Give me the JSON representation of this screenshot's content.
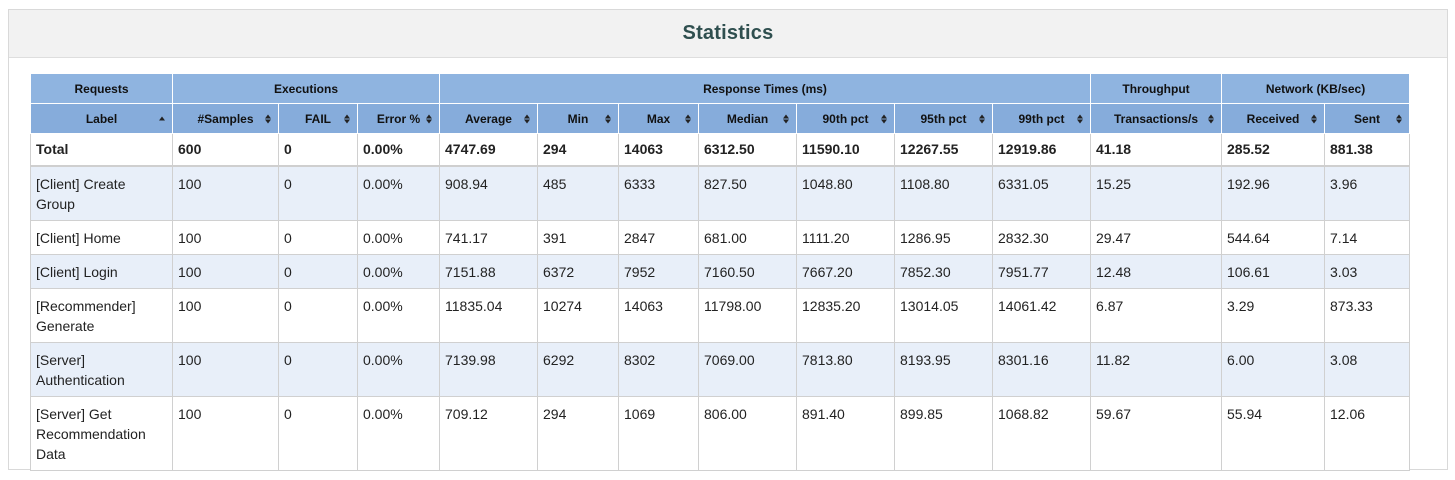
{
  "title": "Statistics",
  "groups": [
    {
      "label": "Requests",
      "span": 1
    },
    {
      "label": "Executions",
      "span": 3
    },
    {
      "label": "Response Times (ms)",
      "span": 7
    },
    {
      "label": "Throughput",
      "span": 1
    },
    {
      "label": "Network (KB/sec)",
      "span": 2
    }
  ],
  "columns": [
    {
      "label": "Label",
      "sort": "asc"
    },
    {
      "label": "#Samples",
      "sort": "both"
    },
    {
      "label": "FAIL",
      "sort": "both"
    },
    {
      "label": "Error %",
      "sort": "both"
    },
    {
      "label": "Average",
      "sort": "both"
    },
    {
      "label": "Min",
      "sort": "both"
    },
    {
      "label": "Max",
      "sort": "both"
    },
    {
      "label": "Median",
      "sort": "both"
    },
    {
      "label": "90th pct",
      "sort": "both"
    },
    {
      "label": "95th pct",
      "sort": "both"
    },
    {
      "label": "99th pct",
      "sort": "both"
    },
    {
      "label": "Transactions/s",
      "sort": "both"
    },
    {
      "label": "Received",
      "sort": "both"
    },
    {
      "label": "Sent",
      "sort": "both"
    }
  ],
  "total": [
    "Total",
    "600",
    "0",
    "0.00%",
    "4747.69",
    "294",
    "14063",
    "6312.50",
    "11590.10",
    "12267.55",
    "12919.86",
    "41.18",
    "285.52",
    "881.38"
  ],
  "rows": [
    [
      "[Client] Create Group",
      "100",
      "0",
      "0.00%",
      "908.94",
      "485",
      "6333",
      "827.50",
      "1048.80",
      "1108.80",
      "6331.05",
      "15.25",
      "192.96",
      "3.96"
    ],
    [
      "[Client] Home",
      "100",
      "0",
      "0.00%",
      "741.17",
      "391",
      "2847",
      "681.00",
      "1111.20",
      "1286.95",
      "2832.30",
      "29.47",
      "544.64",
      "7.14"
    ],
    [
      "[Client] Login",
      "100",
      "0",
      "0.00%",
      "7151.88",
      "6372",
      "7952",
      "7160.50",
      "7667.20",
      "7852.30",
      "7951.77",
      "12.48",
      "106.61",
      "3.03"
    ],
    [
      "[Recommender] Generate",
      "100",
      "0",
      "0.00%",
      "11835.04",
      "10274",
      "14063",
      "11798.00",
      "12835.20",
      "13014.05",
      "14061.42",
      "6.87",
      "3.29",
      "873.33"
    ],
    [
      "[Server] Authentication",
      "100",
      "0",
      "0.00%",
      "7139.98",
      "6292",
      "8302",
      "7069.00",
      "7813.80",
      "8193.95",
      "8301.16",
      "11.82",
      "6.00",
      "3.08"
    ],
    [
      "[Server] Get Recommendation Data",
      "100",
      "0",
      "0.00%",
      "709.12",
      "294",
      "1069",
      "806.00",
      "891.40",
      "899.85",
      "1068.82",
      "59.67",
      "55.94",
      "12.06"
    ]
  ]
}
